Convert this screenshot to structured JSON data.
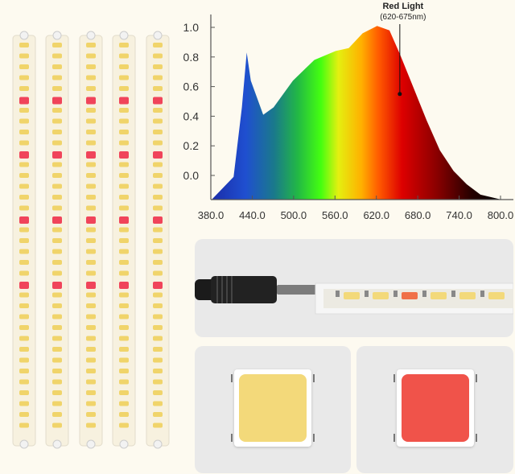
{
  "chart_data": {
    "type": "area",
    "title": "",
    "xlabel": "",
    "ylabel": "",
    "xlim": [
      380,
      800
    ],
    "ylim": [
      -0.16,
      1.05
    ],
    "x_ticks": [
      "380.0",
      "440.0",
      "500.0",
      "560.0",
      "620.0",
      "680.0",
      "740.0",
      "800.0"
    ],
    "y_ticks": [
      "0.0",
      "0.2",
      "0.4",
      "0.6",
      "0.8",
      "1.0"
    ],
    "grid": false,
    "fill": "visible-spectrum gradient",
    "x": [
      382,
      413,
      425,
      432,
      438,
      456,
      471,
      499,
      530,
      561,
      580,
      600,
      621,
      639,
      654,
      674,
      693,
      712,
      732,
      751,
      771,
      798
    ],
    "y": [
      -0.16,
      -0.01,
      0.46,
      0.83,
      0.64,
      0.41,
      0.46,
      0.64,
      0.78,
      0.84,
      0.86,
      0.96,
      1.01,
      0.98,
      0.82,
      0.59,
      0.37,
      0.17,
      0.03,
      -0.06,
      -0.13,
      -0.16
    ],
    "annotation": {
      "line1": "Red Light",
      "line2": "(620-675nm)",
      "x": 654,
      "y": 0.55
    }
  },
  "colors": {
    "background": "#fdfaf0",
    "panel": "#e9e9e9",
    "white_led": "#f3d97a",
    "red_led": "#f0534a"
  }
}
